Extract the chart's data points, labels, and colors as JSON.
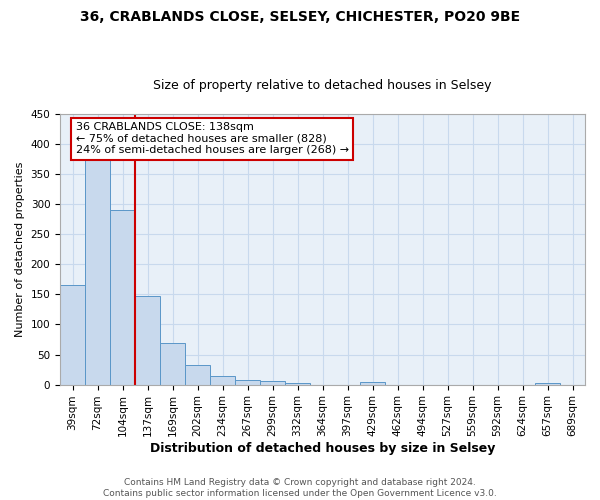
{
  "title1": "36, CRABLANDS CLOSE, SELSEY, CHICHESTER, PO20 9BE",
  "title2": "Size of property relative to detached houses in Selsey",
  "xlabel": "Distribution of detached houses by size in Selsey",
  "ylabel": "Number of detached properties",
  "categories": [
    "39sqm",
    "72sqm",
    "104sqm",
    "137sqm",
    "169sqm",
    "202sqm",
    "234sqm",
    "267sqm",
    "299sqm",
    "332sqm",
    "364sqm",
    "397sqm",
    "429sqm",
    "462sqm",
    "494sqm",
    "527sqm",
    "559sqm",
    "592sqm",
    "624sqm",
    "657sqm",
    "689sqm"
  ],
  "values": [
    165,
    375,
    290,
    148,
    70,
    33,
    15,
    7,
    6,
    3,
    0,
    0,
    4,
    0,
    0,
    0,
    0,
    0,
    0,
    3,
    0
  ],
  "bar_color": "#c8d9ed",
  "bar_edge_color": "#5a96c8",
  "red_line_index": 3,
  "red_line_color": "#cc0000",
  "annotation_text": "36 CRABLANDS CLOSE: 138sqm\n← 75% of detached houses are smaller (828)\n24% of semi-detached houses are larger (268) →",
  "annotation_box_color": "white",
  "annotation_box_edge_color": "#cc0000",
  "ylim": [
    0,
    450
  ],
  "yticks": [
    0,
    50,
    100,
    150,
    200,
    250,
    300,
    350,
    400,
    450
  ],
  "grid_color": "#c8d9ed",
  "background_color": "#e8f0f8",
  "footnote": "Contains HM Land Registry data © Crown copyright and database right 2024.\nContains public sector information licensed under the Open Government Licence v3.0.",
  "title1_fontsize": 10,
  "title2_fontsize": 9,
  "xlabel_fontsize": 9,
  "ylabel_fontsize": 8,
  "tick_fontsize": 7.5,
  "annotation_fontsize": 8,
  "footnote_fontsize": 6.5
}
